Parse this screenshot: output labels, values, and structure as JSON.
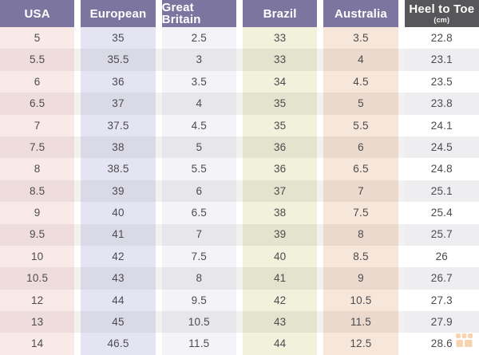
{
  "table": {
    "columns": [
      {
        "label": "USA"
      },
      {
        "label": "European"
      },
      {
        "label": "Great Britain"
      },
      {
        "label": "Brazil"
      },
      {
        "label": "Australia"
      },
      {
        "label": "Heel to Toe",
        "sublabel": "(cm)"
      }
    ],
    "rows": [
      [
        "5",
        "35",
        "2.5",
        "33",
        "3.5",
        "22.8"
      ],
      [
        "5.5",
        "35.5",
        "3",
        "33",
        "4",
        "23.1"
      ],
      [
        "6",
        "36",
        "3.5",
        "34",
        "4.5",
        "23.5"
      ],
      [
        "6.5",
        "37",
        "4",
        "35",
        "5",
        "23.8"
      ],
      [
        "7",
        "37.5",
        "4.5",
        "35",
        "5.5",
        "24.1"
      ],
      [
        "7.5",
        "38",
        "5",
        "36",
        "6",
        "24.5"
      ],
      [
        "8",
        "38.5",
        "5.5",
        "36",
        "6.5",
        "24.8"
      ],
      [
        "8.5",
        "39",
        "6",
        "37",
        "7",
        "25.1"
      ],
      [
        "9",
        "40",
        "6.5",
        "38",
        "7.5",
        "25.4"
      ],
      [
        "9.5",
        "41",
        "7",
        "39",
        "8",
        "25.7"
      ],
      [
        "10",
        "42",
        "7.5",
        "40",
        "8.5",
        "26"
      ],
      [
        "10.5",
        "43",
        "8",
        "41",
        "9",
        "26.7"
      ],
      [
        "12",
        "44",
        "9.5",
        "42",
        "10.5",
        "27.3"
      ],
      [
        "13",
        "45",
        "10.5",
        "43",
        "11.5",
        "27.9"
      ],
      [
        "14",
        "46.5",
        "11.5",
        "44",
        "12.5",
        "28.6"
      ]
    ]
  },
  "chart_data": {
    "type": "table",
    "title": "Shoe size conversion table",
    "columns": [
      "USA",
      "European",
      "Great Britain",
      "Brazil",
      "Australia",
      "Heel to Toe (cm)"
    ],
    "rows": [
      [
        5,
        35,
        2.5,
        33,
        3.5,
        22.8
      ],
      [
        5.5,
        35.5,
        3,
        33,
        4,
        23.1
      ],
      [
        6,
        36,
        3.5,
        34,
        4.5,
        23.5
      ],
      [
        6.5,
        37,
        4,
        35,
        5,
        23.8
      ],
      [
        7,
        37.5,
        4.5,
        35,
        5.5,
        24.1
      ],
      [
        7.5,
        38,
        5,
        36,
        6,
        24.5
      ],
      [
        8,
        38.5,
        5.5,
        36,
        6.5,
        24.8
      ],
      [
        8.5,
        39,
        6,
        37,
        7,
        25.1
      ],
      [
        9,
        40,
        6.5,
        38,
        7.5,
        25.4
      ],
      [
        9.5,
        41,
        7,
        39,
        8,
        25.7
      ],
      [
        10,
        42,
        7.5,
        40,
        8.5,
        26
      ],
      [
        10.5,
        43,
        8,
        41,
        9,
        26.7
      ],
      [
        12,
        44,
        9.5,
        42,
        10.5,
        27.3
      ],
      [
        13,
        45,
        10.5,
        43,
        11.5,
        27.9
      ],
      [
        14,
        46.5,
        11.5,
        44,
        12.5,
        28.6
      ]
    ],
    "layout": {
      "header_style": "purple blocks, last column dark gray",
      "row_striping": true,
      "grid": false,
      "legend": "none"
    }
  },
  "colors": {
    "header_bg": "#7b75a0",
    "header_last_bg": "#57575a",
    "header_text": "#ffffff",
    "cell_text": "#4b4b4e",
    "column_odd": [
      "#f9eae7",
      "#e5e4f3",
      "#f4f4f8",
      "#f1f1dc",
      "#f7e6da",
      "#ffffff"
    ],
    "column_even": [
      "#eedddc",
      "#dad9e6",
      "#e7e6eb",
      "#e4e4ce",
      "#ebd9cd",
      "#eeedf0"
    ],
    "watermark": "#f0ab66"
  },
  "watermark": {
    "icon": "storefront-icon"
  }
}
